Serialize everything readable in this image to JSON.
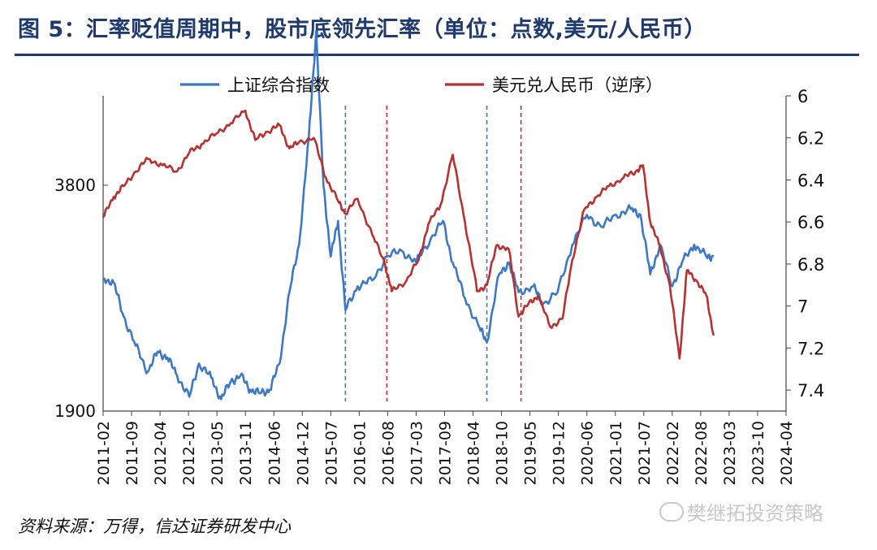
{
  "title": "图 5：汇率贬值周期中，股市底领先汇率（单位：点数,美元/人民币）",
  "source": "资料来源：万得，信达证券研发中心",
  "watermark": "樊继拓投资策略",
  "chart_data": {
    "type": "line",
    "x_ticks": [
      "2011-02",
      "2011-09",
      "2012-04",
      "2012-10",
      "2013-05",
      "2013-11",
      "2014-06",
      "2014-12",
      "2015-07",
      "2016-01",
      "2016-08",
      "2017-03",
      "2017-09",
      "2018-04",
      "2018-10",
      "2019-05",
      "2019-12",
      "2020-06",
      "2021-01",
      "2021-07",
      "2022-02",
      "2022-08",
      "2023-03",
      "2023-10",
      "2024-04"
    ],
    "y_left": {
      "ticks": [
        1900,
        3800
      ]
    },
    "y_right": {
      "ticks": [
        6,
        6.2,
        6.4,
        6.6,
        6.8,
        7,
        7.2,
        7.4
      ],
      "reversed": true
    },
    "series": [
      {
        "name": "上证综合指数",
        "axis": "left",
        "color": "#3c78c8",
        "points": [
          [
            2011.08,
            3020
          ],
          [
            2011.3,
            2980
          ],
          [
            2011.5,
            2700
          ],
          [
            2011.75,
            2450
          ],
          [
            2012.0,
            2230
          ],
          [
            2012.2,
            2400
          ],
          [
            2012.4,
            2350
          ],
          [
            2012.6,
            2200
          ],
          [
            2012.85,
            2020
          ],
          [
            2013.05,
            2300
          ],
          [
            2013.3,
            2180
          ],
          [
            2013.5,
            2000
          ],
          [
            2013.7,
            2150
          ],
          [
            2013.9,
            2200
          ],
          [
            2014.1,
            2080
          ],
          [
            2014.3,
            2050
          ],
          [
            2014.5,
            2080
          ],
          [
            2014.7,
            2300
          ],
          [
            2014.9,
            2900
          ],
          [
            2015.1,
            3300
          ],
          [
            2015.3,
            4200
          ],
          [
            2015.45,
            5100
          ],
          [
            2015.6,
            3800
          ],
          [
            2015.75,
            3200
          ],
          [
            2015.9,
            3500
          ],
          [
            2016.05,
            2750
          ],
          [
            2016.3,
            2950
          ],
          [
            2016.6,
            3000
          ],
          [
            2016.9,
            3200
          ],
          [
            2017.2,
            3250
          ],
          [
            2017.5,
            3150
          ],
          [
            2017.8,
            3350
          ],
          [
            2018.05,
            3500
          ],
          [
            2018.25,
            3150
          ],
          [
            2018.5,
            2850
          ],
          [
            2018.8,
            2600
          ],
          [
            2018.95,
            2480
          ],
          [
            2019.2,
            3050
          ],
          [
            2019.4,
            3150
          ],
          [
            2019.6,
            2900
          ],
          [
            2019.9,
            2950
          ],
          [
            2020.1,
            2800
          ],
          [
            2020.4,
            2900
          ],
          [
            2020.7,
            3300
          ],
          [
            2021.0,
            3550
          ],
          [
            2021.3,
            3450
          ],
          [
            2021.6,
            3550
          ],
          [
            2021.9,
            3600
          ],
          [
            2022.1,
            3550
          ],
          [
            2022.3,
            3050
          ],
          [
            2022.5,
            3300
          ],
          [
            2022.75,
            2950
          ],
          [
            2022.95,
            3150
          ],
          [
            2023.2,
            3300
          ],
          [
            2023.45,
            3200
          ],
          [
            2023.6,
            3200
          ]
        ]
      },
      {
        "name": "美元兑人民币（逆序）",
        "axis": "right",
        "color": "#b83030",
        "points": [
          [
            2011.08,
            6.58
          ],
          [
            2011.3,
            6.48
          ],
          [
            2011.5,
            6.43
          ],
          [
            2011.75,
            6.36
          ],
          [
            2012.0,
            6.3
          ],
          [
            2012.3,
            6.33
          ],
          [
            2012.6,
            6.36
          ],
          [
            2012.85,
            6.27
          ],
          [
            2013.1,
            6.23
          ],
          [
            2013.4,
            6.18
          ],
          [
            2013.7,
            6.13
          ],
          [
            2014.0,
            6.07
          ],
          [
            2014.2,
            6.21
          ],
          [
            2014.45,
            6.17
          ],
          [
            2014.7,
            6.14
          ],
          [
            2014.9,
            6.25
          ],
          [
            2015.1,
            6.22
          ],
          [
            2015.4,
            6.2
          ],
          [
            2015.65,
            6.39
          ],
          [
            2015.9,
            6.5
          ],
          [
            2016.05,
            6.56
          ],
          [
            2016.3,
            6.49
          ],
          [
            2016.6,
            6.66
          ],
          [
            2016.85,
            6.79
          ],
          [
            2017.0,
            6.93
          ],
          [
            2017.3,
            6.88
          ],
          [
            2017.55,
            6.78
          ],
          [
            2017.75,
            6.61
          ],
          [
            2018.0,
            6.52
          ],
          [
            2018.25,
            6.28
          ],
          [
            2018.5,
            6.6
          ],
          [
            2018.75,
            6.93
          ],
          [
            2018.95,
            6.9
          ],
          [
            2019.15,
            6.71
          ],
          [
            2019.4,
            6.73
          ],
          [
            2019.6,
            7.05
          ],
          [
            2019.8,
            6.99
          ],
          [
            2020.0,
            6.95
          ],
          [
            2020.25,
            7.1
          ],
          [
            2020.5,
            7.06
          ],
          [
            2020.7,
            6.78
          ],
          [
            2020.95,
            6.54
          ],
          [
            2021.2,
            6.48
          ],
          [
            2021.45,
            6.43
          ],
          [
            2021.75,
            6.39
          ],
          [
            2022.0,
            6.36
          ],
          [
            2022.15,
            6.33
          ],
          [
            2022.3,
            6.6
          ],
          [
            2022.5,
            6.72
          ],
          [
            2022.7,
            6.9
          ],
          [
            2022.9,
            7.25
          ],
          [
            2023.05,
            6.83
          ],
          [
            2023.25,
            6.88
          ],
          [
            2023.45,
            6.95
          ],
          [
            2023.6,
            7.14
          ]
        ]
      }
    ],
    "vlines": [
      {
        "x": 2016.05,
        "color": "#3c78c8"
      },
      {
        "x": 2016.9,
        "color": "#b83030"
      },
      {
        "x": 2018.95,
        "color": "#3c78c8"
      },
      {
        "x": 2019.65,
        "color": "#b83030"
      }
    ]
  }
}
